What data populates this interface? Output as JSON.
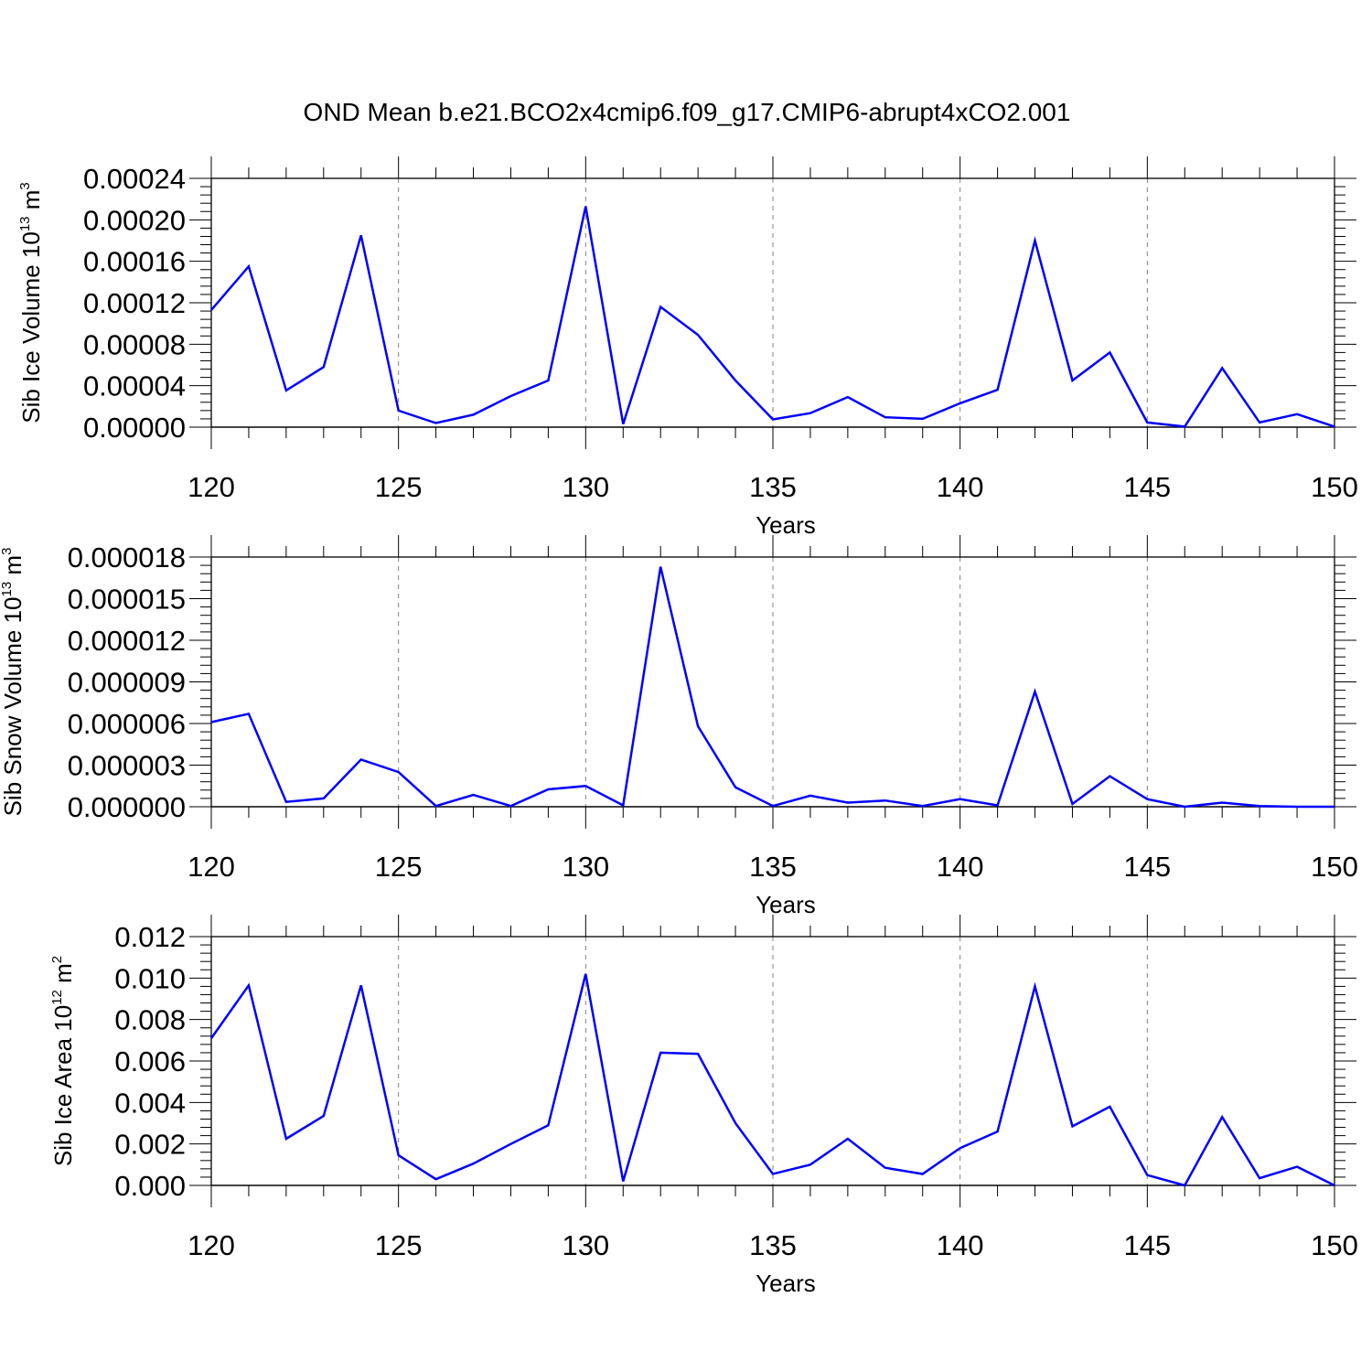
{
  "figure_title": "OND Mean b.e21.BCO2x4cmip6.f09_g17.CMIP6-abrupt4xCO2.001",
  "colors": {
    "line": "#0000ff",
    "axis": "#000000",
    "gridline": "#808080"
  },
  "chart_data": [
    {
      "type": "line",
      "panel": "top",
      "xlabel": "Years",
      "ylabel_parts": [
        "Sib Ice Volume 10",
        "13",
        " m",
        "3"
      ],
      "ylabel": "Sib Ice Volume 10^13 m^3",
      "xlim": [
        120,
        150
      ],
      "ylim": [
        0,
        0.00024
      ],
      "xticks": [
        120,
        125,
        130,
        135,
        140,
        145,
        150
      ],
      "xtick_labels": [
        "120",
        "125",
        "130",
        "135",
        "140",
        "145",
        "150"
      ],
      "yticks": [
        0,
        4e-05,
        8e-05,
        0.00012,
        0.00016,
        0.0002,
        0.00024
      ],
      "ytick_labels": [
        "0.00000",
        "0.00004",
        "0.00008",
        "0.00012",
        "0.00016",
        "0.00020",
        "0.00024"
      ],
      "grid": "vertical dashed at major x ticks",
      "x": [
        120,
        121,
        122,
        123,
        124,
        125,
        126,
        127,
        128,
        129,
        130,
        131,
        132,
        133,
        134,
        135,
        136,
        137,
        138,
        139,
        140,
        141,
        142,
        143,
        144,
        145,
        146,
        147,
        148,
        149,
        150
      ],
      "series": [
        {
          "values": [
            0.000113,
            0.000155,
            3.55e-05,
            5.8e-05,
            0.000185,
            1.6e-05,
            4e-06,
            1.2e-05,
            3e-05,
            4.5e-05,
            0.000213,
            3e-06,
            0.000116,
            8.9e-05,
            4.5e-05,
            7.5e-06,
            1.35e-05,
            2.9e-05,
            9.5e-06,
            8e-06,
            2.3e-05,
            3.6e-05,
            0.00018,
            4.5e-05,
            7.2e-05,
            4.5e-06,
            5e-07,
            5.7e-05,
            4.5e-06,
            1.25e-05,
            5e-07
          ]
        }
      ]
    },
    {
      "type": "line",
      "panel": "middle",
      "xlabel": "Years",
      "ylabel_parts": [
        "Sib Snow Volume 10",
        "13",
        " m",
        "3"
      ],
      "ylabel": "Sib Snow Volume 10^13 m^3",
      "xlim": [
        120,
        150
      ],
      "ylim": [
        0,
        1.8e-05
      ],
      "xticks": [
        120,
        125,
        130,
        135,
        140,
        145,
        150
      ],
      "xtick_labels": [
        "120",
        "125",
        "130",
        "135",
        "140",
        "145",
        "150"
      ],
      "yticks": [
        0,
        3e-06,
        6e-06,
        9e-06,
        1.2e-05,
        1.5e-05,
        1.8e-05
      ],
      "ytick_labels": [
        "0.000000",
        "0.000003",
        "0.000006",
        "0.000009",
        "0.000012",
        "0.000015",
        "0.000018"
      ],
      "grid": "vertical dashed at major x ticks",
      "x": [
        120,
        121,
        122,
        123,
        124,
        125,
        126,
        127,
        128,
        129,
        130,
        131,
        132,
        133,
        134,
        135,
        136,
        137,
        138,
        139,
        140,
        141,
        142,
        143,
        144,
        145,
        146,
        147,
        148,
        149,
        150
      ],
      "series": [
        {
          "values": [
            6.1e-06,
            6.7e-06,
            3.5e-07,
            6e-07,
            3.4e-06,
            2.5e-06,
            5e-08,
            8.5e-07,
            5e-08,
            1.25e-06,
            1.5e-06,
            1e-07,
            1.73e-05,
            5.8e-06,
            1.4e-06,
            5e-08,
            8e-07,
            3e-07,
            4.5e-07,
            5e-08,
            5.5e-07,
            1e-07,
            8.3e-06,
            2e-07,
            2.2e-06,
            5.5e-07,
            0.0,
            3e-07,
            5e-08,
            0.0,
            0.0
          ]
        }
      ]
    },
    {
      "type": "line",
      "panel": "bottom",
      "xlabel": "Years",
      "ylabel_parts": [
        "Sib Ice Area 10",
        "12",
        " m",
        "2"
      ],
      "ylabel": "Sib Ice Area 10^12 m^2",
      "xlim": [
        120,
        150
      ],
      "ylim": [
        0,
        0.012
      ],
      "xticks": [
        120,
        125,
        130,
        135,
        140,
        145,
        150
      ],
      "xtick_labels": [
        "120",
        "125",
        "130",
        "135",
        "140",
        "145",
        "150"
      ],
      "yticks": [
        0,
        0.002,
        0.004,
        0.006,
        0.008,
        0.01,
        0.012
      ],
      "ytick_labels": [
        "0.000",
        "0.002",
        "0.004",
        "0.006",
        "0.008",
        "0.010",
        "0.012"
      ],
      "grid": "vertical dashed at major x ticks",
      "x": [
        120,
        121,
        122,
        123,
        124,
        125,
        126,
        127,
        128,
        129,
        130,
        131,
        132,
        133,
        134,
        135,
        136,
        137,
        138,
        139,
        140,
        141,
        142,
        143,
        144,
        145,
        146,
        147,
        148,
        149,
        150
      ],
      "series": [
        {
          "values": [
            0.0071,
            0.00965,
            0.00225,
            0.00335,
            0.00965,
            0.00145,
            0.0003,
            0.00105,
            0.002,
            0.0029,
            0.0102,
            0.0002,
            0.0064,
            0.00635,
            0.003,
            0.00055,
            0.001,
            0.00225,
            0.00085,
            0.00055,
            0.0018,
            0.0026,
            0.0096,
            0.00285,
            0.0038,
            0.0005,
            0.0,
            0.0033,
            0.00035,
            0.0009,
            0.0
          ]
        }
      ]
    }
  ]
}
